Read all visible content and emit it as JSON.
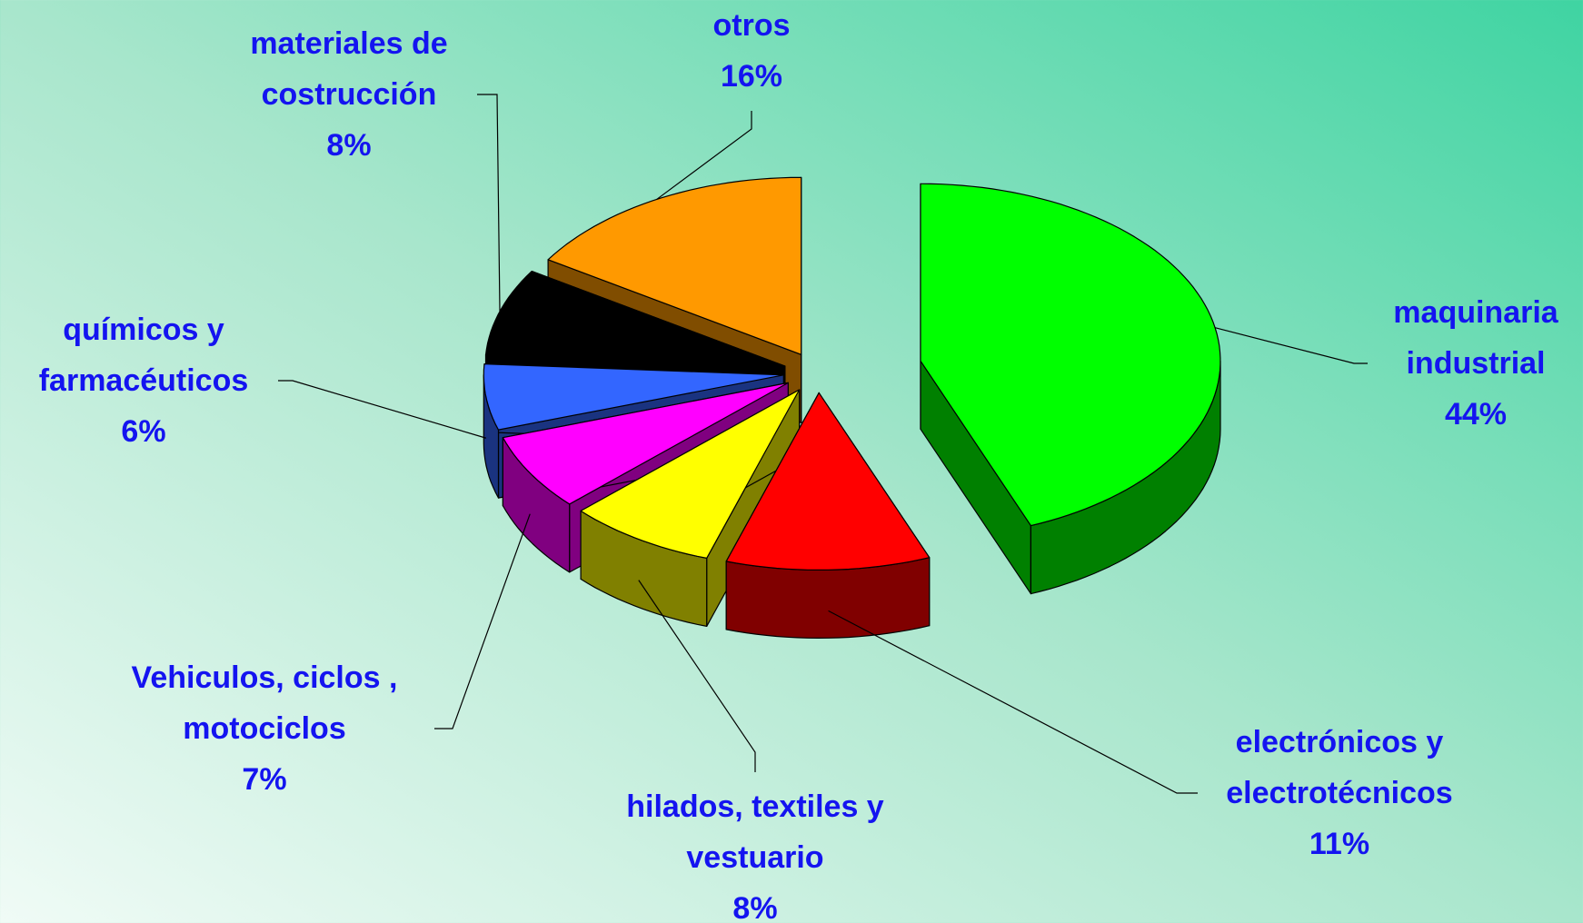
{
  "chart_data": {
    "type": "pie3d",
    "categories": [
      "maquinaria\nindustrial",
      "electrónicos y\nelectrotécnicos",
      "hilados, textiles y\nvestuario",
      "Vehiculos, ciclos ,\nmotociclos",
      "químicos y\nfarmacéuticos",
      "materiales de\ncostrucción",
      "otros"
    ],
    "values": [
      44,
      11,
      8,
      7,
      6,
      8,
      16
    ],
    "value_labels": [
      "44%",
      "11%",
      "8%",
      "7%",
      "6%",
      "8%",
      "16%"
    ],
    "colors": [
      "#00ff00",
      "#ff0000",
      "#ffff00",
      "#ff00ff",
      "#3366ff",
      "#000000",
      "#ff9900"
    ]
  }
}
